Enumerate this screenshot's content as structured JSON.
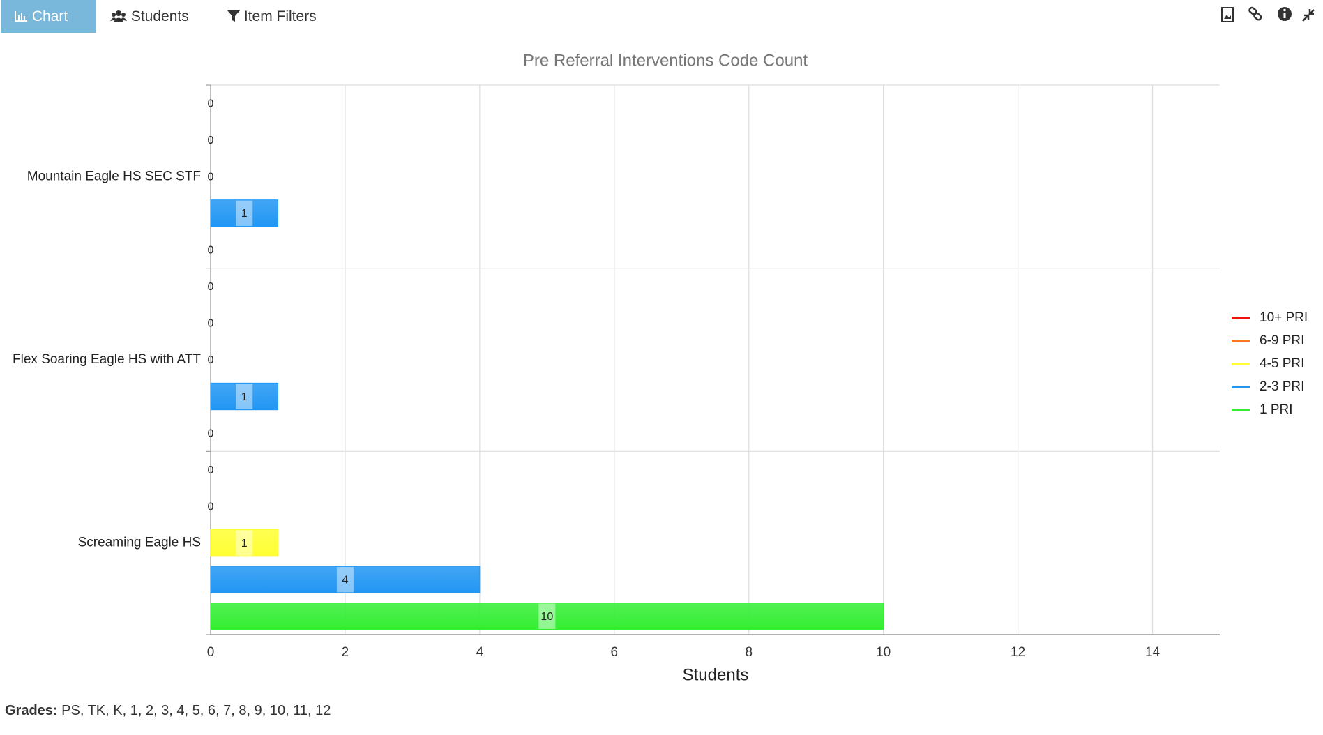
{
  "toolbar": {
    "tabs": [
      "Chart",
      "Students",
      "Item Filters"
    ]
  },
  "chart_data": {
    "type": "bar",
    "orientation": "horizontal",
    "title": "Pre Referral Interventions Code Count",
    "x_label": "Students",
    "categories": [
      "Mountain Eagle HS SEC STF",
      "Flex Soaring Eagle HS with ATT",
      "Screaming Eagle HS"
    ],
    "series": [
      {
        "name": "10+ PRI",
        "color": "#ee1111",
        "values": [
          0,
          0,
          0
        ]
      },
      {
        "name": "6-9 PRI",
        "color": "#ff7722",
        "values": [
          0,
          0,
          0
        ]
      },
      {
        "name": "4-5 PRI",
        "color": "#ffff33",
        "values": [
          0,
          0,
          1
        ]
      },
      {
        "name": "2-3 PRI",
        "color": "#2196f3",
        "values": [
          1,
          1,
          4
        ]
      },
      {
        "name": "1 PRI",
        "color": "#33ee33",
        "values": [
          0,
          0,
          10
        ]
      }
    ],
    "xlim": [
      0,
      15
    ],
    "xticks": [
      0,
      2,
      4,
      6,
      8,
      10,
      12,
      14
    ],
    "grid": true,
    "legend": "right"
  },
  "footer": {
    "label": "Grades:",
    "value": "PS, TK, K, 1, 2, 3, 4, 5, 6, 7, 8, 9, 10, 11, 12"
  }
}
